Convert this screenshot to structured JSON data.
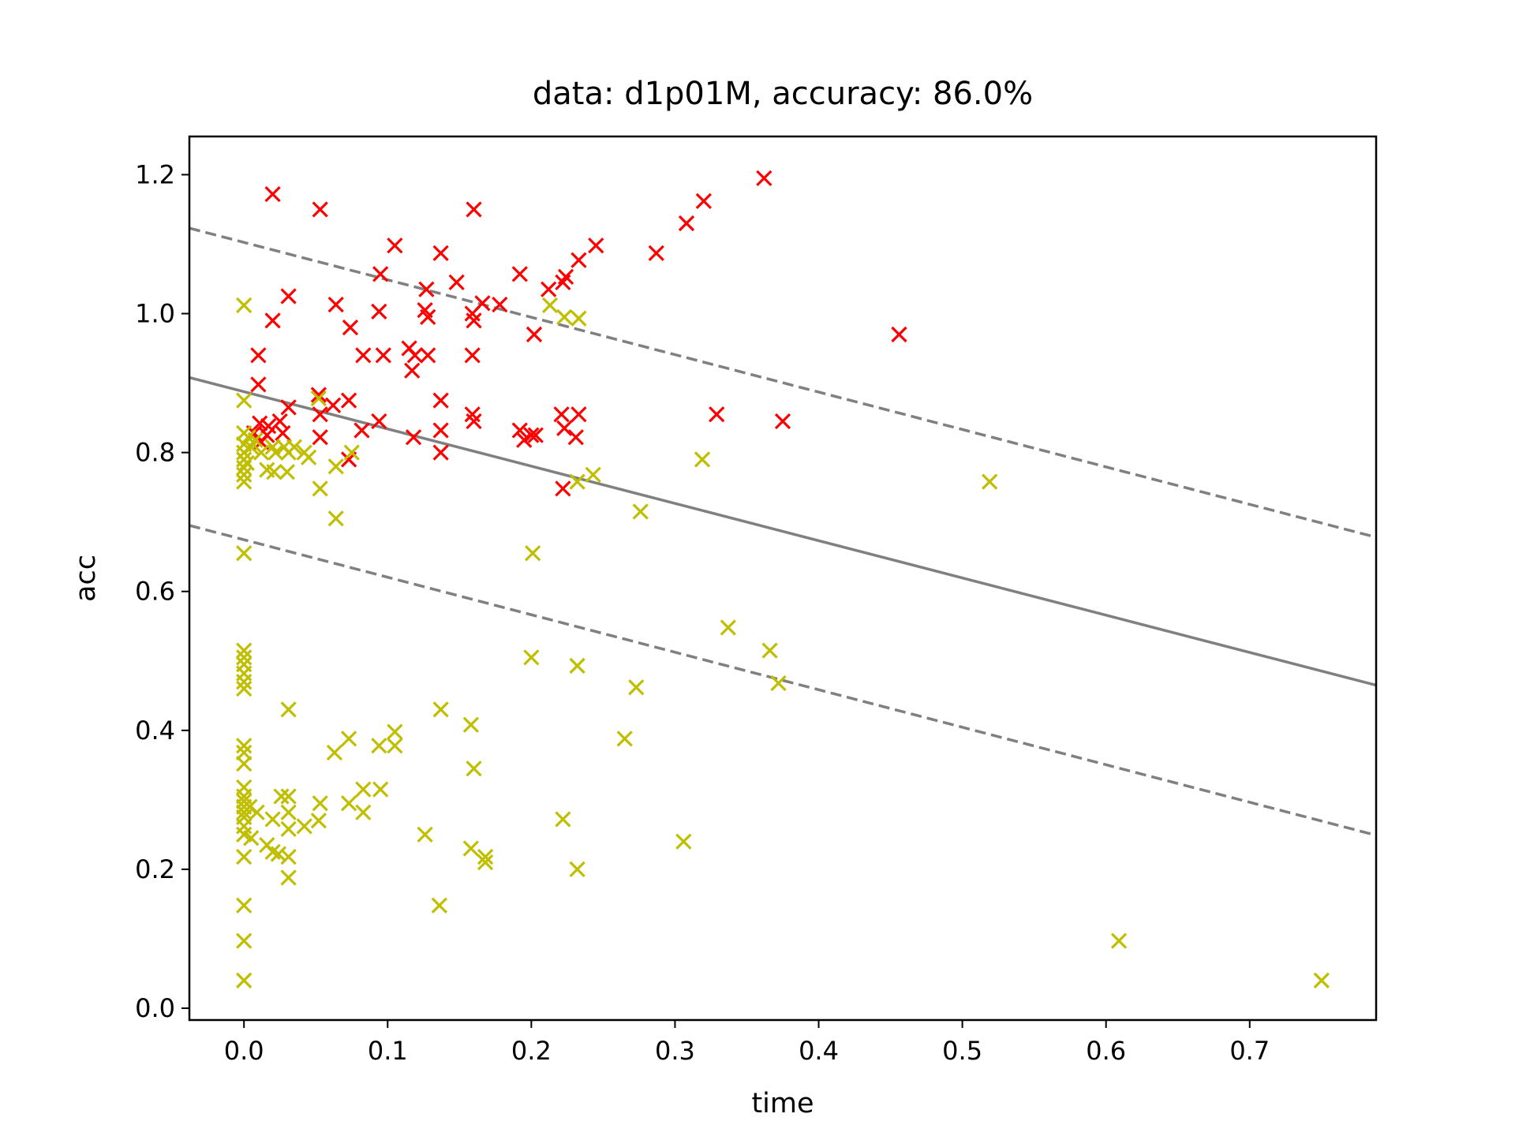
{
  "chart_data": {
    "type": "scatter",
    "title": "data: d1p01M, accuracy: 86.0%",
    "xlabel": "time",
    "ylabel": "acc",
    "xlim": [
      -0.038,
      0.788
    ],
    "ylim": [
      -0.017,
      1.255
    ],
    "xticks": [
      0.0,
      0.1,
      0.2,
      0.3,
      0.4,
      0.5,
      0.6,
      0.7
    ],
    "xtick_labels": [
      "0.0",
      "0.1",
      "0.2",
      "0.3",
      "0.4",
      "0.5",
      "0.6",
      "0.7"
    ],
    "yticks": [
      0.0,
      0.2,
      0.4,
      0.6,
      0.8,
      1.0,
      1.2
    ],
    "ytick_labels": [
      "0.0",
      "0.2",
      "0.4",
      "0.6",
      "0.8",
      "1.0",
      "1.2"
    ],
    "grid": false,
    "marker": "x",
    "lines": [
      {
        "style": "solid",
        "color": "#808080",
        "x": [
          -0.038,
          0.788
        ],
        "y": [
          0.908,
          0.465
        ]
      },
      {
        "style": "dashed",
        "color": "#808080",
        "x": [
          -0.038,
          0.788
        ],
        "y": [
          1.123,
          0.678
        ]
      },
      {
        "style": "dashed",
        "color": "#808080",
        "x": [
          -0.038,
          0.788
        ],
        "y": [
          0.695,
          0.249
        ]
      }
    ],
    "series": [
      {
        "color": "#ff0000",
        "points": [
          [
            0.02,
            1.172
          ],
          [
            0.053,
            1.15
          ],
          [
            0.16,
            1.15
          ],
          [
            0.362,
            1.195
          ],
          [
            0.32,
            1.162
          ],
          [
            0.308,
            1.13
          ],
          [
            0.105,
            1.098
          ],
          [
            0.245,
            1.098
          ],
          [
            0.287,
            1.087
          ],
          [
            0.137,
            1.087
          ],
          [
            0.233,
            1.077
          ],
          [
            0.095,
            1.057
          ],
          [
            0.192,
            1.057
          ],
          [
            0.224,
            1.053
          ],
          [
            0.222,
            1.045
          ],
          [
            0.148,
            1.045
          ],
          [
            0.127,
            1.035
          ],
          [
            0.212,
            1.035
          ],
          [
            0.031,
            1.025
          ],
          [
            0.166,
            1.015
          ],
          [
            0.178,
            1.013
          ],
          [
            0.064,
            1.013
          ],
          [
            0.126,
            1.005
          ],
          [
            0.094,
            1.003
          ],
          [
            0.128,
            0.995
          ],
          [
            0.159,
            1.0
          ],
          [
            0.16,
            0.99
          ],
          [
            0.02,
            0.99
          ],
          [
            0.074,
            0.98
          ],
          [
            0.202,
            0.97
          ],
          [
            0.456,
            0.97
          ],
          [
            0.115,
            0.95
          ],
          [
            0.01,
            0.94
          ],
          [
            0.083,
            0.94
          ],
          [
            0.097,
            0.94
          ],
          [
            0.119,
            0.94
          ],
          [
            0.128,
            0.94
          ],
          [
            0.159,
            0.94
          ],
          [
            0.117,
            0.918
          ],
          [
            0.01,
            0.898
          ],
          [
            0.052,
            0.883
          ],
          [
            0.073,
            0.875
          ],
          [
            0.137,
            0.875
          ],
          [
            0.062,
            0.868
          ],
          [
            0.031,
            0.865
          ],
          [
            0.053,
            0.855
          ],
          [
            0.159,
            0.855
          ],
          [
            0.221,
            0.855
          ],
          [
            0.233,
            0.855
          ],
          [
            0.329,
            0.855
          ],
          [
            0.16,
            0.845
          ],
          [
            0.375,
            0.845
          ],
          [
            0.025,
            0.845
          ],
          [
            0.094,
            0.845
          ],
          [
            0.011,
            0.842
          ],
          [
            0.017,
            0.838
          ],
          [
            0.223,
            0.835
          ],
          [
            0.192,
            0.832
          ],
          [
            0.137,
            0.832
          ],
          [
            0.082,
            0.832
          ],
          [
            0.007,
            0.828
          ],
          [
            0.027,
            0.828
          ],
          [
            0.016,
            0.825
          ],
          [
            0.2,
            0.825
          ],
          [
            0.203,
            0.825
          ],
          [
            0.053,
            0.822
          ],
          [
            0.118,
            0.822
          ],
          [
            0.231,
            0.822
          ],
          [
            0.195,
            0.818
          ],
          [
            0.012,
            0.815
          ],
          [
            0.137,
            0.8
          ],
          [
            0.073,
            0.79
          ],
          [
            0.222,
            0.748
          ]
        ]
      },
      {
        "color": "#bfbf00",
        "points": [
          [
            0.0,
            1.012
          ],
          [
            0.213,
            1.012
          ],
          [
            0.223,
            0.995
          ],
          [
            0.233,
            0.993
          ],
          [
            0.0,
            0.875
          ],
          [
            0.052,
            0.878
          ],
          [
            0.0,
            0.828
          ],
          [
            0.003,
            0.822
          ],
          [
            0.008,
            0.818
          ],
          [
            0.0,
            0.812
          ],
          [
            0.005,
            0.808
          ],
          [
            0.02,
            0.808
          ],
          [
            0.028,
            0.808
          ],
          [
            0.035,
            0.808
          ],
          [
            0.0,
            0.8
          ],
          [
            0.012,
            0.8
          ],
          [
            0.022,
            0.8
          ],
          [
            0.031,
            0.8
          ],
          [
            0.042,
            0.8
          ],
          [
            0.075,
            0.8
          ],
          [
            0.0,
            0.79
          ],
          [
            0.002,
            0.785
          ],
          [
            0.045,
            0.793
          ],
          [
            0.319,
            0.79
          ],
          [
            0.0,
            0.778
          ],
          [
            0.016,
            0.775
          ],
          [
            0.021,
            0.772
          ],
          [
            0.03,
            0.772
          ],
          [
            0.064,
            0.78
          ],
          [
            0.0,
            0.768
          ],
          [
            0.243,
            0.768
          ],
          [
            0.0,
            0.758
          ],
          [
            0.232,
            0.758
          ],
          [
            0.519,
            0.758
          ],
          [
            0.053,
            0.748
          ],
          [
            0.276,
            0.715
          ],
          [
            0.064,
            0.705
          ],
          [
            0.0,
            0.655
          ],
          [
            0.201,
            0.655
          ],
          [
            0.337,
            0.548
          ],
          [
            0.0,
            0.515
          ],
          [
            0.366,
            0.515
          ],
          [
            0.0,
            0.505
          ],
          [
            0.2,
            0.505
          ],
          [
            0.0,
            0.495
          ],
          [
            0.232,
            0.493
          ],
          [
            0.0,
            0.482
          ],
          [
            0.0,
            0.47
          ],
          [
            0.372,
            0.468
          ],
          [
            0.0,
            0.46
          ],
          [
            0.273,
            0.462
          ],
          [
            0.031,
            0.43
          ],
          [
            0.137,
            0.43
          ],
          [
            0.158,
            0.408
          ],
          [
            0.105,
            0.398
          ],
          [
            0.073,
            0.388
          ],
          [
            0.265,
            0.388
          ],
          [
            0.094,
            0.378
          ],
          [
            0.105,
            0.378
          ],
          [
            0.0,
            0.378
          ],
          [
            0.0,
            0.368
          ],
          [
            0.063,
            0.368
          ],
          [
            0.0,
            0.352
          ],
          [
            0.16,
            0.345
          ],
          [
            0.0,
            0.318
          ],
          [
            0.095,
            0.315
          ],
          [
            0.083,
            0.315
          ],
          [
            0.0,
            0.305
          ],
          [
            0.0,
            0.298
          ],
          [
            0.026,
            0.305
          ],
          [
            0.031,
            0.305
          ],
          [
            0.053,
            0.295
          ],
          [
            0.073,
            0.295
          ],
          [
            0.0,
            0.29
          ],
          [
            0.004,
            0.29
          ],
          [
            0.0,
            0.282
          ],
          [
            0.009,
            0.282
          ],
          [
            0.031,
            0.282
          ],
          [
            0.083,
            0.282
          ],
          [
            0.0,
            0.275
          ],
          [
            0.02,
            0.272
          ],
          [
            0.222,
            0.272
          ],
          [
            0.0,
            0.262
          ],
          [
            0.042,
            0.262
          ],
          [
            0.031,
            0.258
          ],
          [
            0.052,
            0.27
          ],
          [
            0.126,
            0.25
          ],
          [
            0.0,
            0.25
          ],
          [
            0.005,
            0.245
          ],
          [
            0.306,
            0.24
          ],
          [
            0.016,
            0.235
          ],
          [
            0.158,
            0.23
          ],
          [
            0.02,
            0.225
          ],
          [
            0.024,
            0.222
          ],
          [
            0.0,
            0.218
          ],
          [
            0.031,
            0.218
          ],
          [
            0.168,
            0.218
          ],
          [
            0.168,
            0.21
          ],
          [
            0.232,
            0.2
          ],
          [
            0.031,
            0.188
          ],
          [
            0.0,
            0.148
          ],
          [
            0.136,
            0.148
          ],
          [
            0.0,
            0.097
          ],
          [
            0.609,
            0.097
          ],
          [
            0.0,
            0.04
          ],
          [
            0.75,
            0.04
          ]
        ]
      }
    ]
  }
}
